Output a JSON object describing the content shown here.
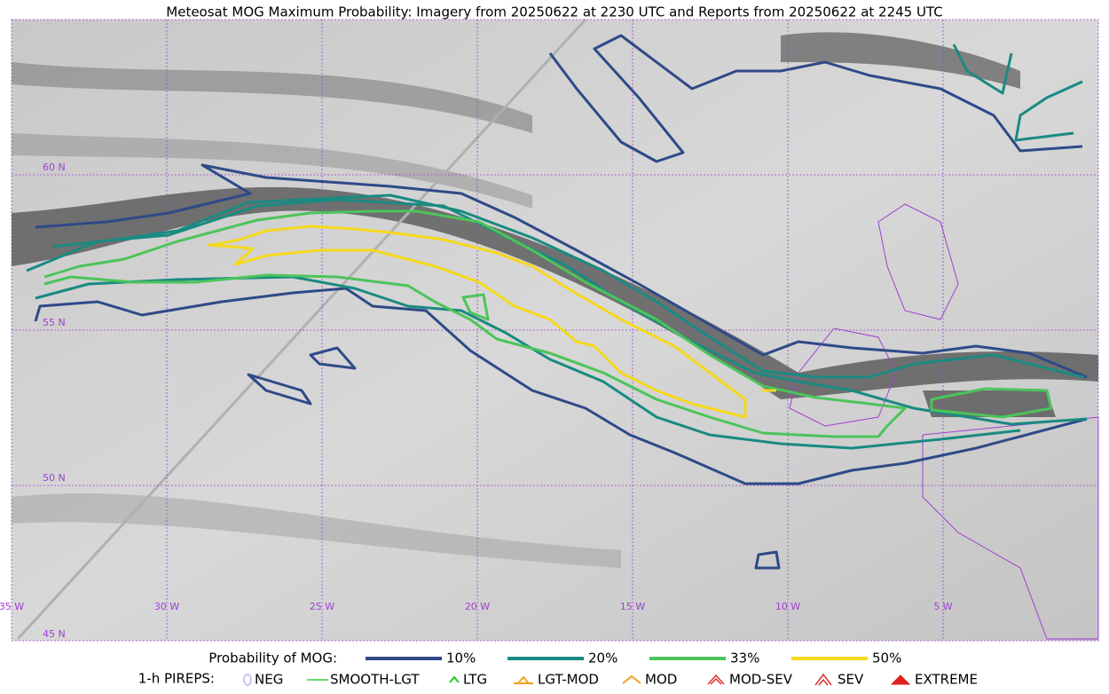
{
  "title": "Meteosat MOG Maximum Probability: Imagery from 20250622 at 2230 UTC and Reports from 20250622 at 2245 UTC",
  "map": {
    "lat_labels": [
      "60 N",
      "55 N",
      "50 N",
      "45 N"
    ],
    "lon_labels": [
      "35 W",
      "30 W",
      "25 W",
      "20 W",
      "15 W",
      "10 W",
      "5 W"
    ],
    "grid_color": "#a040d0"
  },
  "legend": {
    "probability": {
      "label": "Probability of MOG:",
      "items": [
        {
          "label": "10%",
          "color": "#2e4a87"
        },
        {
          "label": "20%",
          "color": "#1a8a82"
        },
        {
          "label": "33%",
          "color": "#4cc45a"
        },
        {
          "label": "50%",
          "color": "#f5d81c"
        }
      ]
    },
    "pireps": {
      "label": "1-h PIREPS:",
      "items": [
        {
          "label": "NEG",
          "color": "#c9c2f0"
        },
        {
          "label": "SMOOTH-LGT",
          "color": "#3ccf3c"
        },
        {
          "label": "LTG",
          "color": "#22cc22"
        },
        {
          "label": "LGT-MOD",
          "color": "#f0a020"
        },
        {
          "label": "MOD",
          "color": "#f0a020"
        },
        {
          "label": "MOD-SEV",
          "color": "#e03030"
        },
        {
          "label": "SEV",
          "color": "#e03030"
        },
        {
          "label": "EXTREME",
          "color": "#e02020"
        }
      ]
    }
  }
}
